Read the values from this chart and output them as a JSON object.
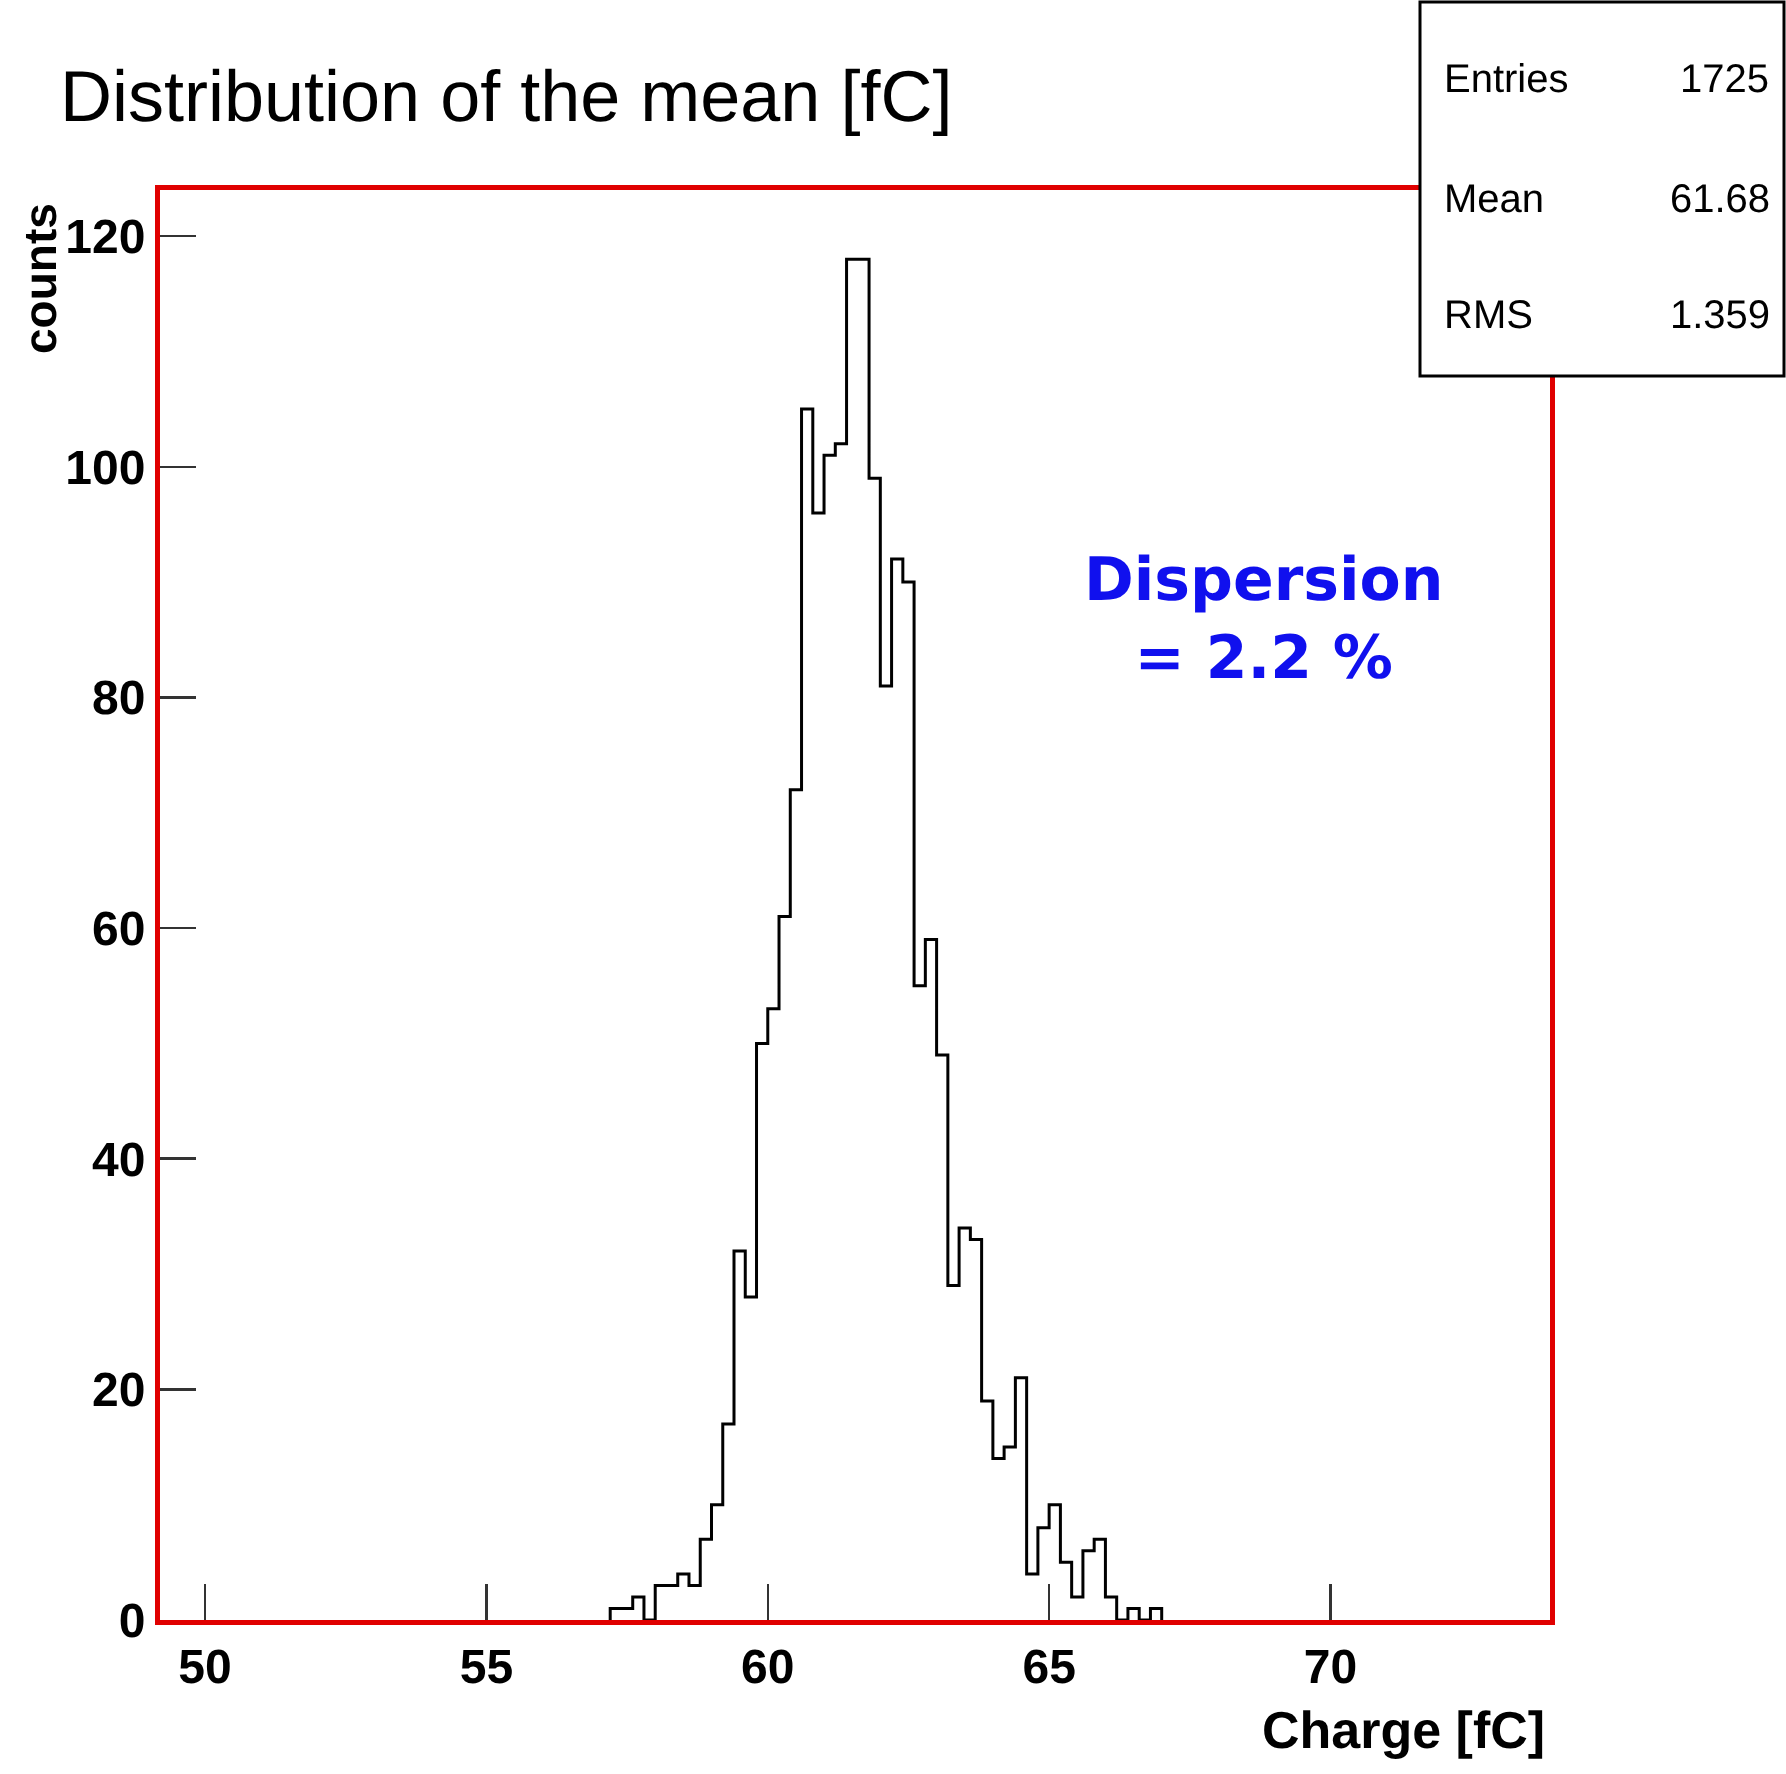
{
  "chart_data": {
    "type": "histogram",
    "title": "Distribution of the mean [fC]",
    "xlabel": "Charge [fC]",
    "ylabel": "counts",
    "bins": [
      57.2,
      57.4,
      57.6,
      57.8,
      58.0,
      58.2,
      58.4,
      58.6,
      58.8,
      59.0,
      59.2,
      59.4,
      59.6,
      59.8,
      60.0,
      60.2,
      60.4,
      60.6,
      60.8,
      61.0,
      61.2,
      61.4,
      61.6,
      61.8,
      62.0,
      62.2,
      62.4,
      62.6,
      62.8,
      63.0,
      63.2,
      63.4,
      63.6,
      63.8,
      64.0,
      64.2,
      64.4,
      64.6,
      64.8,
      65.0,
      65.2,
      65.4,
      65.6,
      65.8,
      66.0,
      66.2,
      66.4,
      66.6,
      66.8,
      67.0
    ],
    "values": [
      1,
      1,
      2,
      0,
      3,
      3,
      4,
      3,
      7,
      10,
      17,
      32,
      28,
      50,
      53,
      61,
      72,
      105,
      96,
      101,
      102,
      118,
      118,
      99,
      81,
      92,
      90,
      55,
      59,
      49,
      29,
      34,
      33,
      19,
      14,
      15,
      21,
      4,
      8,
      10,
      5,
      2,
      6,
      7,
      2,
      0,
      1,
      0,
      1
    ],
    "color": "#000000",
    "xlim": [
      49.2,
      73.9
    ],
    "xticks": [
      50,
      55,
      60,
      65,
      70
    ],
    "ylim": [
      0,
      124
    ],
    "yticks": [
      0,
      20,
      40,
      60,
      80,
      100,
      120
    ],
    "grid": false,
    "annotations": [
      "Entries",
      "1725",
      "Mean",
      "61.68",
      "RMS",
      "1.359",
      "Dispersion\n= 2.2 %"
    ]
  }
}
